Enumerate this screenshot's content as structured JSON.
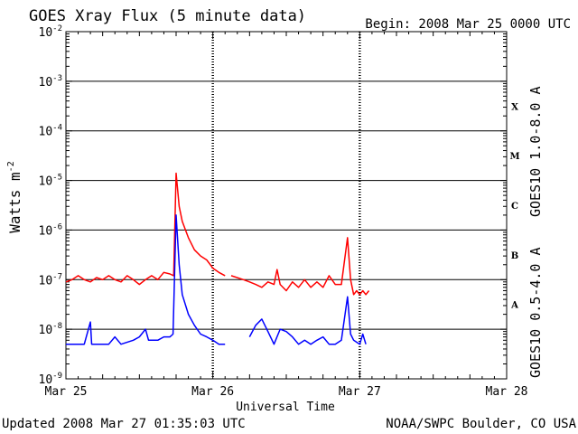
{
  "title": "GOES Xray Flux (5 minute data)",
  "begin_label": "Begin:  2008 Mar 25 0000 UTC",
  "updated": "Updated 2008 Mar 27 01:35:03 UTC",
  "credit": "NOAA/SWPC Boulder, CO USA",
  "chart_data": {
    "type": "line",
    "title": "GOES Xray Flux (5 minute data)",
    "xlabel": "Universal Time",
    "ylabel": "Watts m",
    "ylabel_sup": "-2",
    "yscale": "log",
    "ylim": [
      1e-09,
      0.01
    ],
    "xlim_hours": [
      0,
      72
    ],
    "x_ticks": [
      {
        "h": 0,
        "label": "Mar 25"
      },
      {
        "h": 24,
        "label": "Mar 26"
      },
      {
        "h": 48,
        "label": "Mar 27"
      },
      {
        "h": 72,
        "label": "Mar 28"
      }
    ],
    "y_ticks": [
      {
        "exp": -9,
        "base": "10",
        "sup": "-9"
      },
      {
        "exp": -8,
        "base": "10",
        "sup": "-8"
      },
      {
        "exp": -7,
        "base": "10",
        "sup": "-7"
      },
      {
        "exp": -6,
        "base": "10",
        "sup": "-6"
      },
      {
        "exp": -5,
        "base": "10",
        "sup": "-5"
      },
      {
        "exp": -4,
        "base": "10",
        "sup": "-4"
      },
      {
        "exp": -3,
        "base": "10",
        "sup": "-3"
      },
      {
        "exp": -2,
        "base": "10",
        "sup": "-2"
      }
    ],
    "flare_classes": [
      {
        "label": "A",
        "exp": -8
      },
      {
        "label": "B",
        "exp": -7
      },
      {
        "label": "C",
        "exp": -6
      },
      {
        "label": "M",
        "exp": -5
      },
      {
        "label": "X",
        "exp": -4
      }
    ],
    "series": [
      {
        "name": "GOES10 1.0-8.0 A",
        "color": "#ff0000",
        "points": [
          [
            0,
            9e-08
          ],
          [
            1,
            1e-07
          ],
          [
            2,
            1.2e-07
          ],
          [
            3,
            1e-07
          ],
          [
            4,
            9e-08
          ],
          [
            5,
            1.1e-07
          ],
          [
            6,
            1e-07
          ],
          [
            7,
            1.2e-07
          ],
          [
            8,
            1e-07
          ],
          [
            9,
            9e-08
          ],
          [
            10,
            1.2e-07
          ],
          [
            11,
            1e-07
          ],
          [
            12,
            8e-08
          ],
          [
            13,
            1e-07
          ],
          [
            14,
            1.2e-07
          ],
          [
            15,
            1e-07
          ],
          [
            16,
            1.4e-07
          ],
          [
            17,
            1.3e-07
          ],
          [
            17.6,
            1.2e-07
          ],
          [
            18,
            1.4e-05
          ],
          [
            18.5,
            3e-06
          ],
          [
            19,
            1.5e-06
          ],
          [
            20,
            7e-07
          ],
          [
            21,
            4e-07
          ],
          [
            22,
            3e-07
          ],
          [
            23,
            2.5e-07
          ],
          [
            24,
            1.7e-07
          ],
          [
            25,
            1.4e-07
          ],
          [
            26,
            1.2e-07
          ],
          null,
          [
            27,
            1.2e-07
          ],
          [
            29,
            1e-07
          ],
          [
            30,
            9e-08
          ],
          [
            31,
            8e-08
          ],
          [
            32,
            7e-08
          ],
          [
            33,
            9e-08
          ],
          [
            34,
            8e-08
          ],
          [
            34.5,
            1.6e-07
          ],
          [
            35,
            8e-08
          ],
          [
            36,
            6e-08
          ],
          [
            37,
            9e-08
          ],
          [
            38,
            7e-08
          ],
          [
            39,
            1e-07
          ],
          [
            40,
            7e-08
          ],
          [
            41,
            9e-08
          ],
          [
            42,
            7e-08
          ],
          [
            43,
            1.2e-07
          ],
          [
            44,
            8e-08
          ],
          [
            45,
            8e-08
          ],
          [
            46,
            7e-07
          ],
          [
            46.5,
            1e-07
          ],
          [
            47,
            5e-08
          ],
          [
            47.5,
            6e-08
          ],
          [
            48,
            5e-08
          ],
          [
            48.5,
            6e-08
          ],
          [
            49,
            5e-08
          ],
          [
            49.5,
            6e-08
          ]
        ]
      },
      {
        "name": "GOES10 0.5-4.0 A",
        "color": "#0000ff",
        "points": [
          [
            0,
            5e-09
          ],
          [
            2,
            5e-09
          ],
          [
            3,
            5e-09
          ],
          [
            4,
            1.4e-08
          ],
          [
            4.2,
            5e-09
          ],
          [
            7,
            5e-09
          ],
          [
            8,
            7e-09
          ],
          [
            9,
            5e-09
          ],
          [
            11,
            6e-09
          ],
          [
            12,
            7e-09
          ],
          [
            13,
            1e-08
          ],
          [
            13.5,
            6e-09
          ],
          [
            15,
            6e-09
          ],
          [
            16,
            7e-09
          ],
          [
            17,
            7e-09
          ],
          [
            17.5,
            8e-09
          ],
          [
            18,
            2e-06
          ],
          [
            18.5,
            2e-07
          ],
          [
            19,
            5e-08
          ],
          [
            20,
            2e-08
          ],
          [
            21,
            1.2e-08
          ],
          [
            22,
            8e-09
          ],
          [
            23,
            7e-09
          ],
          [
            24,
            6e-09
          ],
          [
            25,
            5e-09
          ],
          [
            26,
            5e-09
          ],
          null,
          [
            30,
            7e-09
          ],
          [
            31,
            1.2e-08
          ],
          [
            32,
            1.6e-08
          ],
          [
            33,
            9e-09
          ],
          [
            34,
            5e-09
          ],
          [
            35,
            1e-08
          ],
          [
            36,
            9e-09
          ],
          [
            37,
            7e-09
          ],
          [
            38,
            5e-09
          ],
          [
            39,
            6e-09
          ],
          [
            40,
            5e-09
          ],
          [
            41,
            6e-09
          ],
          [
            42,
            7e-09
          ],
          [
            43,
            5e-09
          ],
          [
            44,
            5e-09
          ],
          [
            45,
            6e-09
          ],
          [
            46,
            4.5e-08
          ],
          [
            46.5,
            8e-09
          ],
          [
            47,
            6e-09
          ],
          [
            48,
            5e-09
          ],
          [
            48.5,
            8e-09
          ],
          [
            49,
            5e-09
          ]
        ]
      }
    ]
  }
}
